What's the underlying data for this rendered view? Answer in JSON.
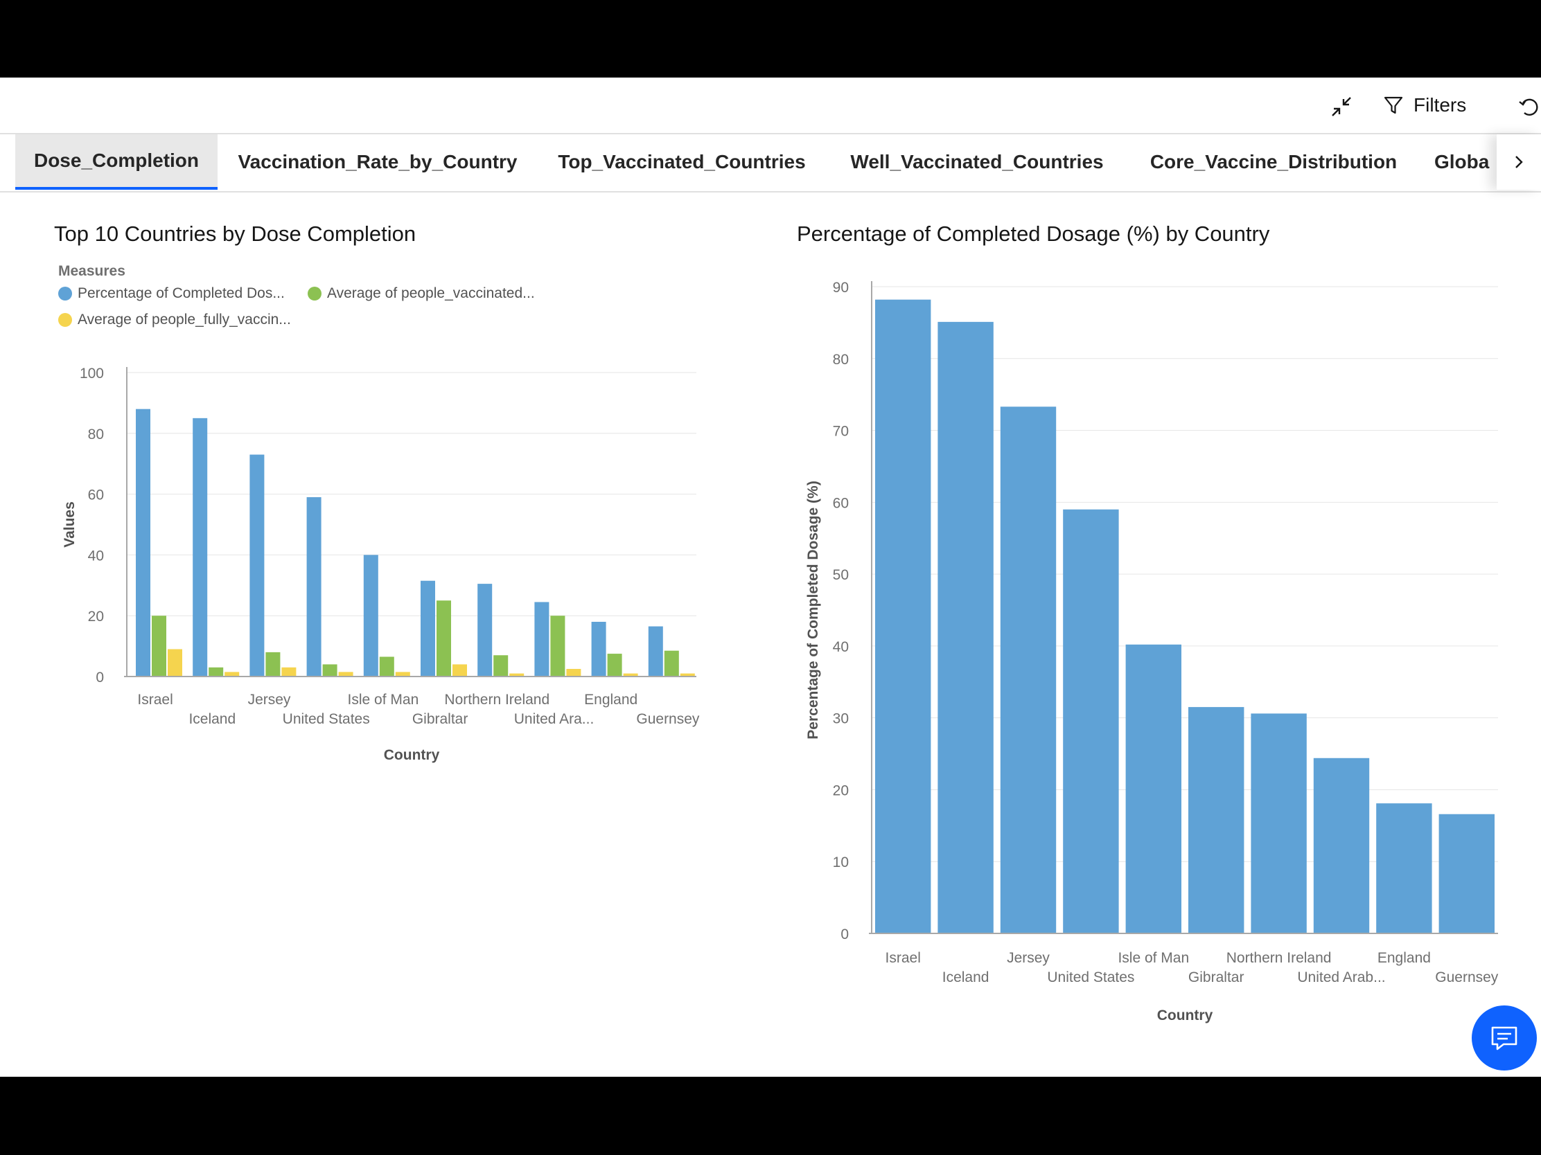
{
  "toolbar": {
    "filters_label": "Filters"
  },
  "tabs": [
    {
      "label": "Dose_Completion",
      "active": true
    },
    {
      "label": "Vaccination_Rate_by_Country",
      "active": false
    },
    {
      "label": "Top_Vaccinated_Countries",
      "active": false
    },
    {
      "label": "Well_Vaccinated_Countries",
      "active": false
    },
    {
      "label": "Core_Vaccine_Distribution",
      "active": false
    },
    {
      "label": "Globa",
      "active": false
    }
  ],
  "colors": {
    "blue": "#5fa2d6",
    "green": "#8cc152",
    "yellow": "#f5d44e",
    "accent": "#0f62fe"
  },
  "chart_data": [
    {
      "type": "bar",
      "title": "Top 10 Countries by Dose Completion",
      "legend_title": "Measures",
      "legend_position": "top-left",
      "xlabel": "Country",
      "ylabel": "Values",
      "ylim": [
        0,
        100
      ],
      "yticks": [
        0,
        20,
        40,
        60,
        80,
        100
      ],
      "grid": true,
      "categories": [
        "Israel",
        "Iceland",
        "Jersey",
        "United States",
        "Isle of Man",
        "Gibraltar",
        "Northern Ireland",
        "United Ara...",
        "England",
        "Guernsey"
      ],
      "series": [
        {
          "name": "Percentage of Completed Dos...",
          "color": "#5fa2d6",
          "values": [
            88,
            85,
            73,
            59,
            40,
            31.5,
            30.5,
            24.5,
            18,
            16.5
          ]
        },
        {
          "name": "Average of people_vaccinated...",
          "color": "#8cc152",
          "values": [
            20,
            3,
            8,
            4,
            6.5,
            25,
            7,
            20,
            7.5,
            8.5
          ]
        },
        {
          "name": "Average of people_fully_vaccin...",
          "color": "#f5d44e",
          "values": [
            9,
            1.5,
            3,
            1.5,
            1.5,
            4,
            1,
            2.5,
            1,
            1
          ]
        }
      ]
    },
    {
      "type": "bar",
      "title": "Percentage of Completed Dosage (%) by Country",
      "xlabel": "Country",
      "ylabel": "Percentage of Completed Dosage (%)",
      "ylim": [
        0,
        90
      ],
      "yticks": [
        0,
        10,
        20,
        30,
        40,
        50,
        60,
        70,
        80,
        90
      ],
      "grid": true,
      "categories": [
        "Israel",
        "Iceland",
        "Jersey",
        "United States",
        "Isle of Man",
        "Gibraltar",
        "Northern Ireland",
        "United Arab...",
        "England",
        "Guernsey"
      ],
      "series": [
        {
          "name": "Percentage of Completed Dosage (%)",
          "color": "#5fa2d6",
          "values": [
            88.2,
            85.1,
            73.3,
            59,
            40.2,
            31.5,
            30.6,
            24.4,
            18.1,
            16.6
          ]
        }
      ]
    }
  ]
}
